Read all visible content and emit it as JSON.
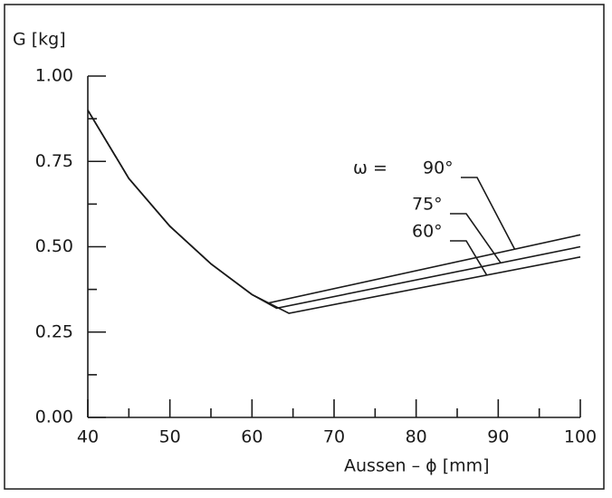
{
  "chart_data": {
    "type": "line",
    "ylabel": "G [kg]",
    "xlabel": "Aussen – ϕ   [mm]",
    "xlim": [
      40,
      100
    ],
    "ylim": [
      0,
      1
    ],
    "xticks": [
      40,
      50,
      60,
      70,
      80,
      90,
      100
    ],
    "xminorticks": [
      45,
      55,
      65,
      75,
      85,
      95
    ],
    "yticks": [
      {
        "value": 0,
        "label": "0.00"
      },
      {
        "value": 0.25,
        "label": "0.25"
      },
      {
        "value": 0.5,
        "label": "0.50"
      },
      {
        "value": 0.75,
        "label": "0.75"
      },
      {
        "value": 1,
        "label": "1.00"
      }
    ],
    "yminorticks": [
      0.125,
      0.375,
      0.625,
      0.875
    ],
    "legend_prefix": "ω =",
    "series": [
      {
        "name": "90°",
        "color": "#1a1a1a",
        "x": [
          40,
          45,
          50,
          55,
          60,
          62,
          100
        ],
        "values": [
          0.9,
          0.7,
          0.56,
          0.45,
          0.36,
          0.335,
          0.535
        ]
      },
      {
        "name": "75°",
        "color": "#1a1a1a",
        "x": [
          40,
          45,
          50,
          55,
          60,
          63,
          100
        ],
        "values": [
          0.9,
          0.7,
          0.56,
          0.45,
          0.36,
          0.32,
          0.5
        ]
      },
      {
        "name": "60°",
        "color": "#1a1a1a",
        "x": [
          40,
          45,
          50,
          55,
          60,
          64.5,
          100
        ],
        "values": [
          0.9,
          0.7,
          0.56,
          0.45,
          0.36,
          0.305,
          0.47
        ]
      }
    ]
  }
}
